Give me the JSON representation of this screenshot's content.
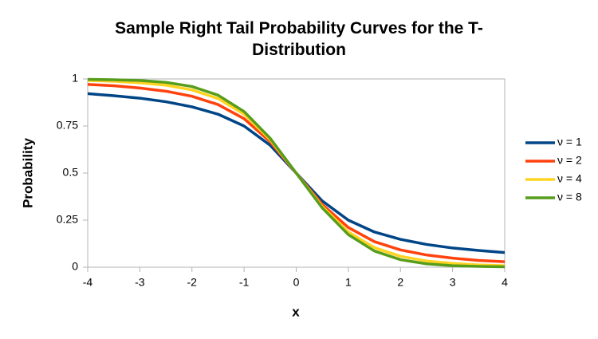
{
  "chart_data": {
    "type": "line",
    "title": "Sample Right Tail Probability Curves for the T-Distribution",
    "x_label": "x",
    "y_label": "Probability",
    "x": [
      -4,
      -3.5,
      -3,
      -2.5,
      -2,
      -1.5,
      -1,
      -0.5,
      0,
      0.5,
      1,
      1.5,
      2,
      2.5,
      3,
      3.5,
      4
    ],
    "series": [
      {
        "name": "ν = 1",
        "color": "#004586",
        "values": [
          0.922,
          0.911,
          0.898,
          0.879,
          0.852,
          0.813,
          0.75,
          0.648,
          0.5,
          0.352,
          0.25,
          0.187,
          0.148,
          0.121,
          0.102,
          0.089,
          0.078
        ]
      },
      {
        "name": "ν = 2",
        "color": "#ff420e",
        "values": [
          0.971,
          0.964,
          0.952,
          0.935,
          0.908,
          0.864,
          0.789,
          0.667,
          0.5,
          0.333,
          0.211,
          0.136,
          0.092,
          0.065,
          0.048,
          0.036,
          0.029
        ]
      },
      {
        "name": "ν = 4",
        "color": "#ffd320",
        "values": [
          0.992,
          0.988,
          0.98,
          0.967,
          0.942,
          0.896,
          0.813,
          0.678,
          0.5,
          0.322,
          0.187,
          0.104,
          0.058,
          0.033,
          0.02,
          0.012,
          0.008
        ]
      },
      {
        "name": "ν = 8",
        "color": "#579d1c",
        "values": [
          0.998,
          0.996,
          0.992,
          0.982,
          0.96,
          0.914,
          0.827,
          0.685,
          0.5,
          0.315,
          0.173,
          0.086,
          0.04,
          0.018,
          0.008,
          0.004,
          0.002
        ]
      }
    ],
    "xlim": [
      -4,
      4
    ],
    "xticks": [
      -4,
      -3,
      -2,
      -1,
      0,
      1,
      2,
      3,
      4
    ],
    "ylim": [
      0,
      1
    ],
    "yticks": [
      0,
      0.25,
      0.5,
      0.75,
      1
    ],
    "legend": "right"
  }
}
